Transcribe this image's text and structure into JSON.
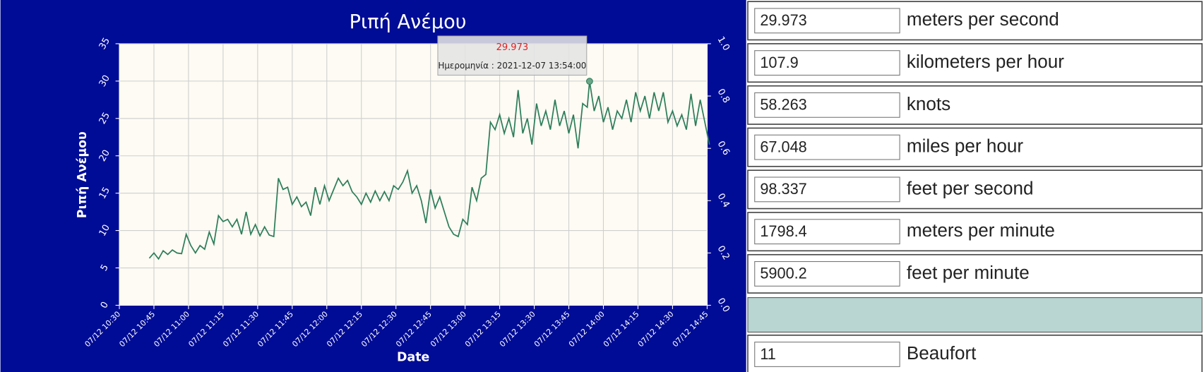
{
  "chart_data": {
    "type": "line",
    "title": "Ριπή Ανέμου",
    "x_label": "Date",
    "y_label": "Ριπή Ανέμου",
    "x": [
      "07/12 10:43",
      "07/12 10:45",
      "07/12 10:47",
      "07/12 10:49",
      "07/12 10:51",
      "07/12 10:53",
      "07/12 10:55",
      "07/12 10:57",
      "07/12 10:59",
      "07/12 11:01",
      "07/12 11:03",
      "07/12 11:05",
      "07/12 11:07",
      "07/12 11:09",
      "07/12 11:11",
      "07/12 11:13",
      "07/12 11:15",
      "07/12 11:17",
      "07/12 11:19",
      "07/12 11:21",
      "07/12 11:23",
      "07/12 11:25",
      "07/12 11:27",
      "07/12 11:29",
      "07/12 11:31",
      "07/12 11:33",
      "07/12 11:35",
      "07/12 11:37",
      "07/12 11:39",
      "07/12 11:41",
      "07/12 11:43",
      "07/12 11:45",
      "07/12 11:47",
      "07/12 11:49",
      "07/12 11:51",
      "07/12 11:53",
      "07/12 11:55",
      "07/12 11:57",
      "07/12 11:59",
      "07/12 12:01",
      "07/12 12:03",
      "07/12 12:05",
      "07/12 12:07",
      "07/12 12:09",
      "07/12 12:11",
      "07/12 12:13",
      "07/12 12:15",
      "07/12 12:17",
      "07/12 12:19",
      "07/12 12:21",
      "07/12 12:23",
      "07/12 12:25",
      "07/12 12:27",
      "07/12 12:29",
      "07/12 12:31",
      "07/12 12:33",
      "07/12 12:35",
      "07/12 12:37",
      "07/12 12:39",
      "07/12 12:41",
      "07/12 12:43",
      "07/12 12:45",
      "07/12 12:47",
      "07/12 12:49",
      "07/12 12:51",
      "07/12 12:53",
      "07/12 12:55",
      "07/12 12:57",
      "07/12 12:59",
      "07/12 13:01",
      "07/12 13:03",
      "07/12 13:05",
      "07/12 13:07",
      "07/12 13:09",
      "07/12 13:11",
      "07/12 13:13",
      "07/12 13:15",
      "07/12 13:17",
      "07/12 13:19",
      "07/12 13:21",
      "07/12 13:23",
      "07/12 13:25",
      "07/12 13:27",
      "07/12 13:29",
      "07/12 13:31",
      "07/12 13:33",
      "07/12 13:35",
      "07/12 13:37",
      "07/12 13:39",
      "07/12 13:41",
      "07/12 13:43",
      "07/12 13:45",
      "07/12 13:47",
      "07/12 13:49",
      "07/12 13:51",
      "07/12 13:53",
      "07/12 13:54",
      "07/12 13:56",
      "07/12 13:58",
      "07/12 14:00",
      "07/12 14:02",
      "07/12 14:04",
      "07/12 14:06",
      "07/12 14:08",
      "07/12 14:10",
      "07/12 14:12",
      "07/12 14:14",
      "07/12 14:16",
      "07/12 14:18",
      "07/12 14:20",
      "07/12 14:22",
      "07/12 14:24",
      "07/12 14:26",
      "07/12 14:28",
      "07/12 14:30",
      "07/12 14:32",
      "07/12 14:34",
      "07/12 14:36",
      "07/12 14:38",
      "07/12 14:40",
      "07/12 14:42",
      "07/12 14:44",
      "07/12 14:46"
    ],
    "series": [
      {
        "color": "#2e7d5b",
        "values": [
          6.3,
          7,
          6.2,
          7.3,
          6.8,
          7.4,
          7,
          6.9,
          9.5,
          8,
          7,
          8,
          7.5,
          9.8,
          8.2,
          12,
          11.2,
          11.5,
          10.5,
          11.5,
          9.5,
          12.5,
          9.5,
          10.8,
          9.3,
          10.5,
          9.4,
          9.2,
          17,
          15.5,
          15.8,
          13.5,
          14.5,
          13.2,
          13.8,
          12,
          15.8,
          13.5,
          16,
          14,
          15.5,
          17,
          16,
          16.7,
          15.2,
          14.5,
          13.5,
          15,
          13.8,
          15.3,
          14,
          15.2,
          14,
          16,
          15.5,
          16.5,
          18,
          15,
          16,
          14,
          11,
          15.5,
          13,
          14.5,
          12.5,
          10.5,
          9.5,
          9.2,
          11.5,
          10.8,
          15.8,
          14,
          17,
          17.5,
          24.5,
          23.5,
          25.5,
          23,
          25,
          22.5,
          28.8,
          23,
          25,
          21.5,
          27,
          24,
          26,
          23.5,
          27.5,
          24,
          26,
          23,
          25.5,
          21,
          27,
          26.5,
          29.973,
          26,
          28,
          24.5,
          26.5,
          23.5,
          26,
          25,
          27.5,
          24.5,
          28.5,
          26,
          28,
          25,
          28.5,
          26,
          28.5,
          24.5,
          26,
          24,
          25.5,
          23.5,
          28.3,
          24,
          27.5,
          24.5,
          21.5
        ]
      }
    ],
    "xlim": [
      "07/12 10:30",
      "07/12 14:45"
    ],
    "xticks": [
      "07/12 10:30",
      "07/12 10:45",
      "07/12 11:00",
      "07/12 11:15",
      "07/12 11:30",
      "07/12 11:45",
      "07/12 12:00",
      "07/12 12:15",
      "07/12 12:30",
      "07/12 12:45",
      "07/12 13:00",
      "07/12 13:15",
      "07/12 13:30",
      "07/12 13:45",
      "07/12 14:00",
      "07/12 14:15",
      "07/12 14:30",
      "07/12 14:45"
    ],
    "ylim": [
      0,
      35
    ],
    "yticks": [
      0,
      5,
      10,
      15,
      20,
      25,
      30,
      35
    ],
    "y2lim": [
      0,
      1
    ],
    "y2ticks": [
      {
        "value": 0,
        "label": "0.0"
      },
      {
        "value": 0.2,
        "label": "0.2"
      },
      {
        "value": 0.4,
        "label": "0.4"
      },
      {
        "value": 0.6,
        "label": "0.6"
      },
      {
        "value": 0.8,
        "label": "0.8"
      },
      {
        "value": 1,
        "label": "1.0"
      }
    ],
    "grid": true,
    "tooltip": {
      "value": "29.973",
      "date": "Ημερομηνία : 2021-12-07 13:54:00"
    }
  },
  "conversions": [
    {
      "value": "29.973",
      "unit": "meters per second"
    },
    {
      "value": "107.9",
      "unit": "kilometers per hour"
    },
    {
      "value": "58.263",
      "unit": "knots"
    },
    {
      "value": "67.048",
      "unit": "miles per hour"
    },
    {
      "value": "98.337",
      "unit": "feet per second"
    },
    {
      "value": "1798.4",
      "unit": "meters per minute"
    },
    {
      "value": "5900.2",
      "unit": "feet per minute"
    }
  ],
  "beaufort": {
    "value": "11",
    "unit": "Beaufort"
  }
}
